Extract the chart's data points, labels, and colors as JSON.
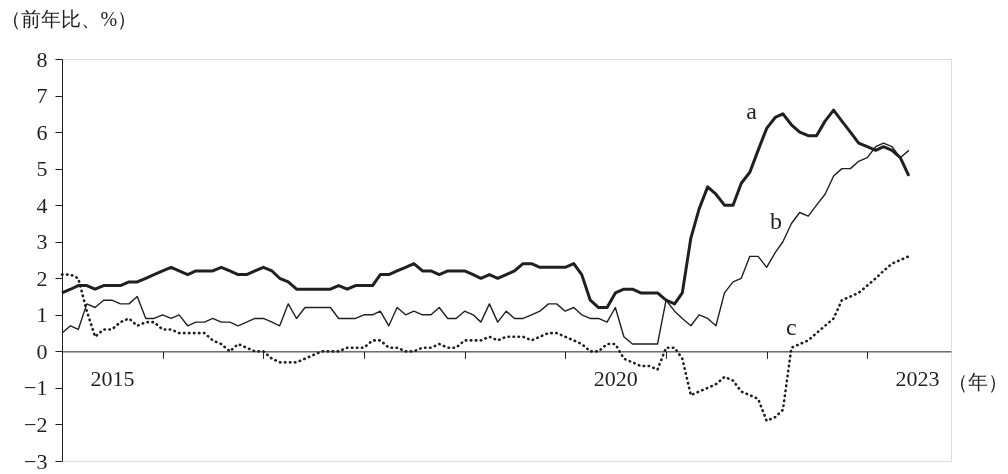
{
  "chart_data": {
    "type": "line",
    "ylabel": "（前年比、%）",
    "xlabel": "（年）",
    "x": [
      "2015-01",
      "2015-02",
      "2015-03",
      "2015-04",
      "2015-05",
      "2015-06",
      "2015-07",
      "2015-08",
      "2015-09",
      "2015-10",
      "2015-11",
      "2015-12",
      "2016-01",
      "2016-02",
      "2016-03",
      "2016-04",
      "2016-05",
      "2016-06",
      "2016-07",
      "2016-08",
      "2016-09",
      "2016-10",
      "2016-11",
      "2016-12",
      "2017-01",
      "2017-02",
      "2017-03",
      "2017-04",
      "2017-05",
      "2017-06",
      "2017-07",
      "2017-08",
      "2017-09",
      "2017-10",
      "2017-11",
      "2017-12",
      "2018-01",
      "2018-02",
      "2018-03",
      "2018-04",
      "2018-05",
      "2018-06",
      "2018-07",
      "2018-08",
      "2018-09",
      "2018-10",
      "2018-11",
      "2018-12",
      "2019-01",
      "2019-02",
      "2019-03",
      "2019-04",
      "2019-05",
      "2019-06",
      "2019-07",
      "2019-08",
      "2019-09",
      "2019-10",
      "2019-11",
      "2019-12",
      "2020-01",
      "2020-02",
      "2020-03",
      "2020-04",
      "2020-05",
      "2020-06",
      "2020-07",
      "2020-08",
      "2020-09",
      "2020-10",
      "2020-11",
      "2020-12",
      "2021-01",
      "2021-02",
      "2021-03",
      "2021-04",
      "2021-05",
      "2021-06",
      "2021-07",
      "2021-08",
      "2021-09",
      "2021-10",
      "2021-11",
      "2021-12",
      "2022-01",
      "2022-02",
      "2022-03",
      "2022-04",
      "2022-05",
      "2022-06",
      "2022-07",
      "2022-08",
      "2022-09",
      "2022-10",
      "2022-11",
      "2022-12",
      "2023-01",
      "2023-02",
      "2023-03",
      "2023-04",
      "2023-05",
      "2023-06"
    ],
    "series": [
      {
        "name": "a",
        "color": "#231f20",
        "line_style": "solid",
        "values": [
          1.6,
          1.7,
          1.8,
          1.8,
          1.7,
          1.8,
          1.8,
          1.8,
          1.9,
          1.9,
          2.0,
          2.1,
          2.2,
          2.3,
          2.2,
          2.1,
          2.2,
          2.2,
          2.2,
          2.3,
          2.2,
          2.1,
          2.1,
          2.2,
          2.3,
          2.2,
          2.0,
          1.9,
          1.7,
          1.7,
          1.7,
          1.7,
          1.7,
          1.8,
          1.7,
          1.8,
          1.8,
          1.8,
          2.1,
          2.1,
          2.2,
          2.3,
          2.4,
          2.2,
          2.2,
          2.1,
          2.2,
          2.2,
          2.2,
          2.1,
          2.0,
          2.1,
          2.0,
          2.1,
          2.2,
          2.4,
          2.4,
          2.3,
          2.3,
          2.3,
          2.3,
          2.4,
          2.1,
          1.4,
          1.2,
          1.2,
          1.6,
          1.7,
          1.7,
          1.6,
          1.6,
          1.6,
          1.4,
          1.3,
          1.6,
          3.1,
          3.9,
          4.5,
          4.3,
          4.0,
          4.0,
          4.6,
          4.9,
          5.5,
          6.1,
          6.4,
          6.5,
          6.2,
          6.0,
          5.9,
          5.9,
          6.3,
          6.6,
          6.3,
          6.0,
          5.7,
          5.6,
          5.5,
          5.6,
          5.5,
          5.3,
          4.8
        ]
      },
      {
        "name": "b",
        "color": "#231f20",
        "line_style": "solid",
        "values": [
          0.5,
          0.7,
          0.6,
          1.3,
          1.2,
          1.4,
          1.4,
          1.3,
          1.3,
          1.5,
          0.9,
          0.9,
          1.0,
          0.9,
          1.0,
          0.7,
          0.8,
          0.8,
          0.9,
          0.8,
          0.8,
          0.7,
          0.8,
          0.9,
          0.9,
          0.8,
          0.7,
          1.3,
          0.9,
          1.2,
          1.2,
          1.2,
          1.2,
          0.9,
          0.9,
          0.9,
          1.0,
          1.0,
          1.1,
          0.7,
          1.2,
          1.0,
          1.1,
          1.0,
          1.0,
          1.2,
          0.9,
          0.9,
          1.1,
          1.0,
          0.8,
          1.3,
          0.8,
          1.1,
          0.9,
          0.9,
          1.0,
          1.1,
          1.3,
          1.3,
          1.1,
          1.2,
          1.0,
          0.9,
          0.9,
          0.8,
          1.2,
          0.4,
          0.2,
          0.2,
          0.2,
          0.2,
          1.4,
          1.1,
          0.9,
          0.7,
          1.0,
          0.9,
          0.7,
          1.6,
          1.9,
          2.0,
          2.6,
          2.6,
          2.3,
          2.7,
          3.0,
          3.5,
          3.8,
          3.7,
          4.0,
          4.3,
          4.8,
          5.0,
          5.0,
          5.2,
          5.3,
          5.6,
          5.7,
          5.6,
          5.3,
          5.5
        ]
      },
      {
        "name": "c",
        "color": "#231f20",
        "line_style": "dotted",
        "values": [
          2.1,
          2.1,
          2.0,
          1.1,
          0.4,
          0.6,
          0.6,
          0.8,
          0.9,
          0.7,
          0.8,
          0.8,
          0.6,
          0.6,
          0.5,
          0.5,
          0.5,
          0.5,
          0.3,
          0.2,
          0.0,
          0.2,
          0.1,
          0.0,
          0.0,
          -0.2,
          -0.3,
          -0.3,
          -0.3,
          -0.2,
          -0.1,
          0.0,
          0.0,
          0.0,
          0.1,
          0.1,
          0.1,
          0.3,
          0.3,
          0.1,
          0.1,
          0.0,
          0.0,
          0.1,
          0.1,
          0.2,
          0.1,
          0.1,
          0.3,
          0.3,
          0.3,
          0.4,
          0.3,
          0.4,
          0.4,
          0.4,
          0.3,
          0.4,
          0.5,
          0.5,
          0.4,
          0.3,
          0.2,
          0.0,
          0.0,
          0.2,
          0.2,
          -0.2,
          -0.3,
          -0.4,
          -0.4,
          -0.5,
          0.1,
          0.1,
          -0.2,
          -1.2,
          -1.1,
          -1.0,
          -0.9,
          -0.7,
          -0.8,
          -1.1,
          -1.2,
          -1.3,
          -1.9,
          -1.8,
          -1.6,
          0.1,
          0.2,
          0.3,
          0.5,
          0.7,
          0.9,
          1.4,
          1.5,
          1.6,
          1.8,
          2.0,
          2.2,
          2.4,
          2.5,
          2.6
        ]
      }
    ],
    "xlim": [
      "2015-01",
      "2023-11"
    ],
    "xticks": [
      {
        "value": "2015-07",
        "label": "2015"
      },
      {
        "value": "2016-01",
        "label": null
      },
      {
        "value": "2017-01",
        "label": null
      },
      {
        "value": "2018-01",
        "label": null
      },
      {
        "value": "2019-01",
        "label": null
      },
      {
        "value": "2020-01",
        "label": null
      },
      {
        "value": "2020-07",
        "label": "2020"
      },
      {
        "value": "2021-01",
        "label": null
      },
      {
        "value": "2022-01",
        "label": null
      },
      {
        "value": "2023-01",
        "label": null
      },
      {
        "value": "2023-07",
        "label": "2023"
      }
    ],
    "ylim": [
      -3,
      8
    ],
    "yticks": [
      -3,
      -2,
      -1,
      0,
      1,
      2,
      3,
      4,
      5,
      6,
      7,
      8
    ],
    "grid": false
  }
}
